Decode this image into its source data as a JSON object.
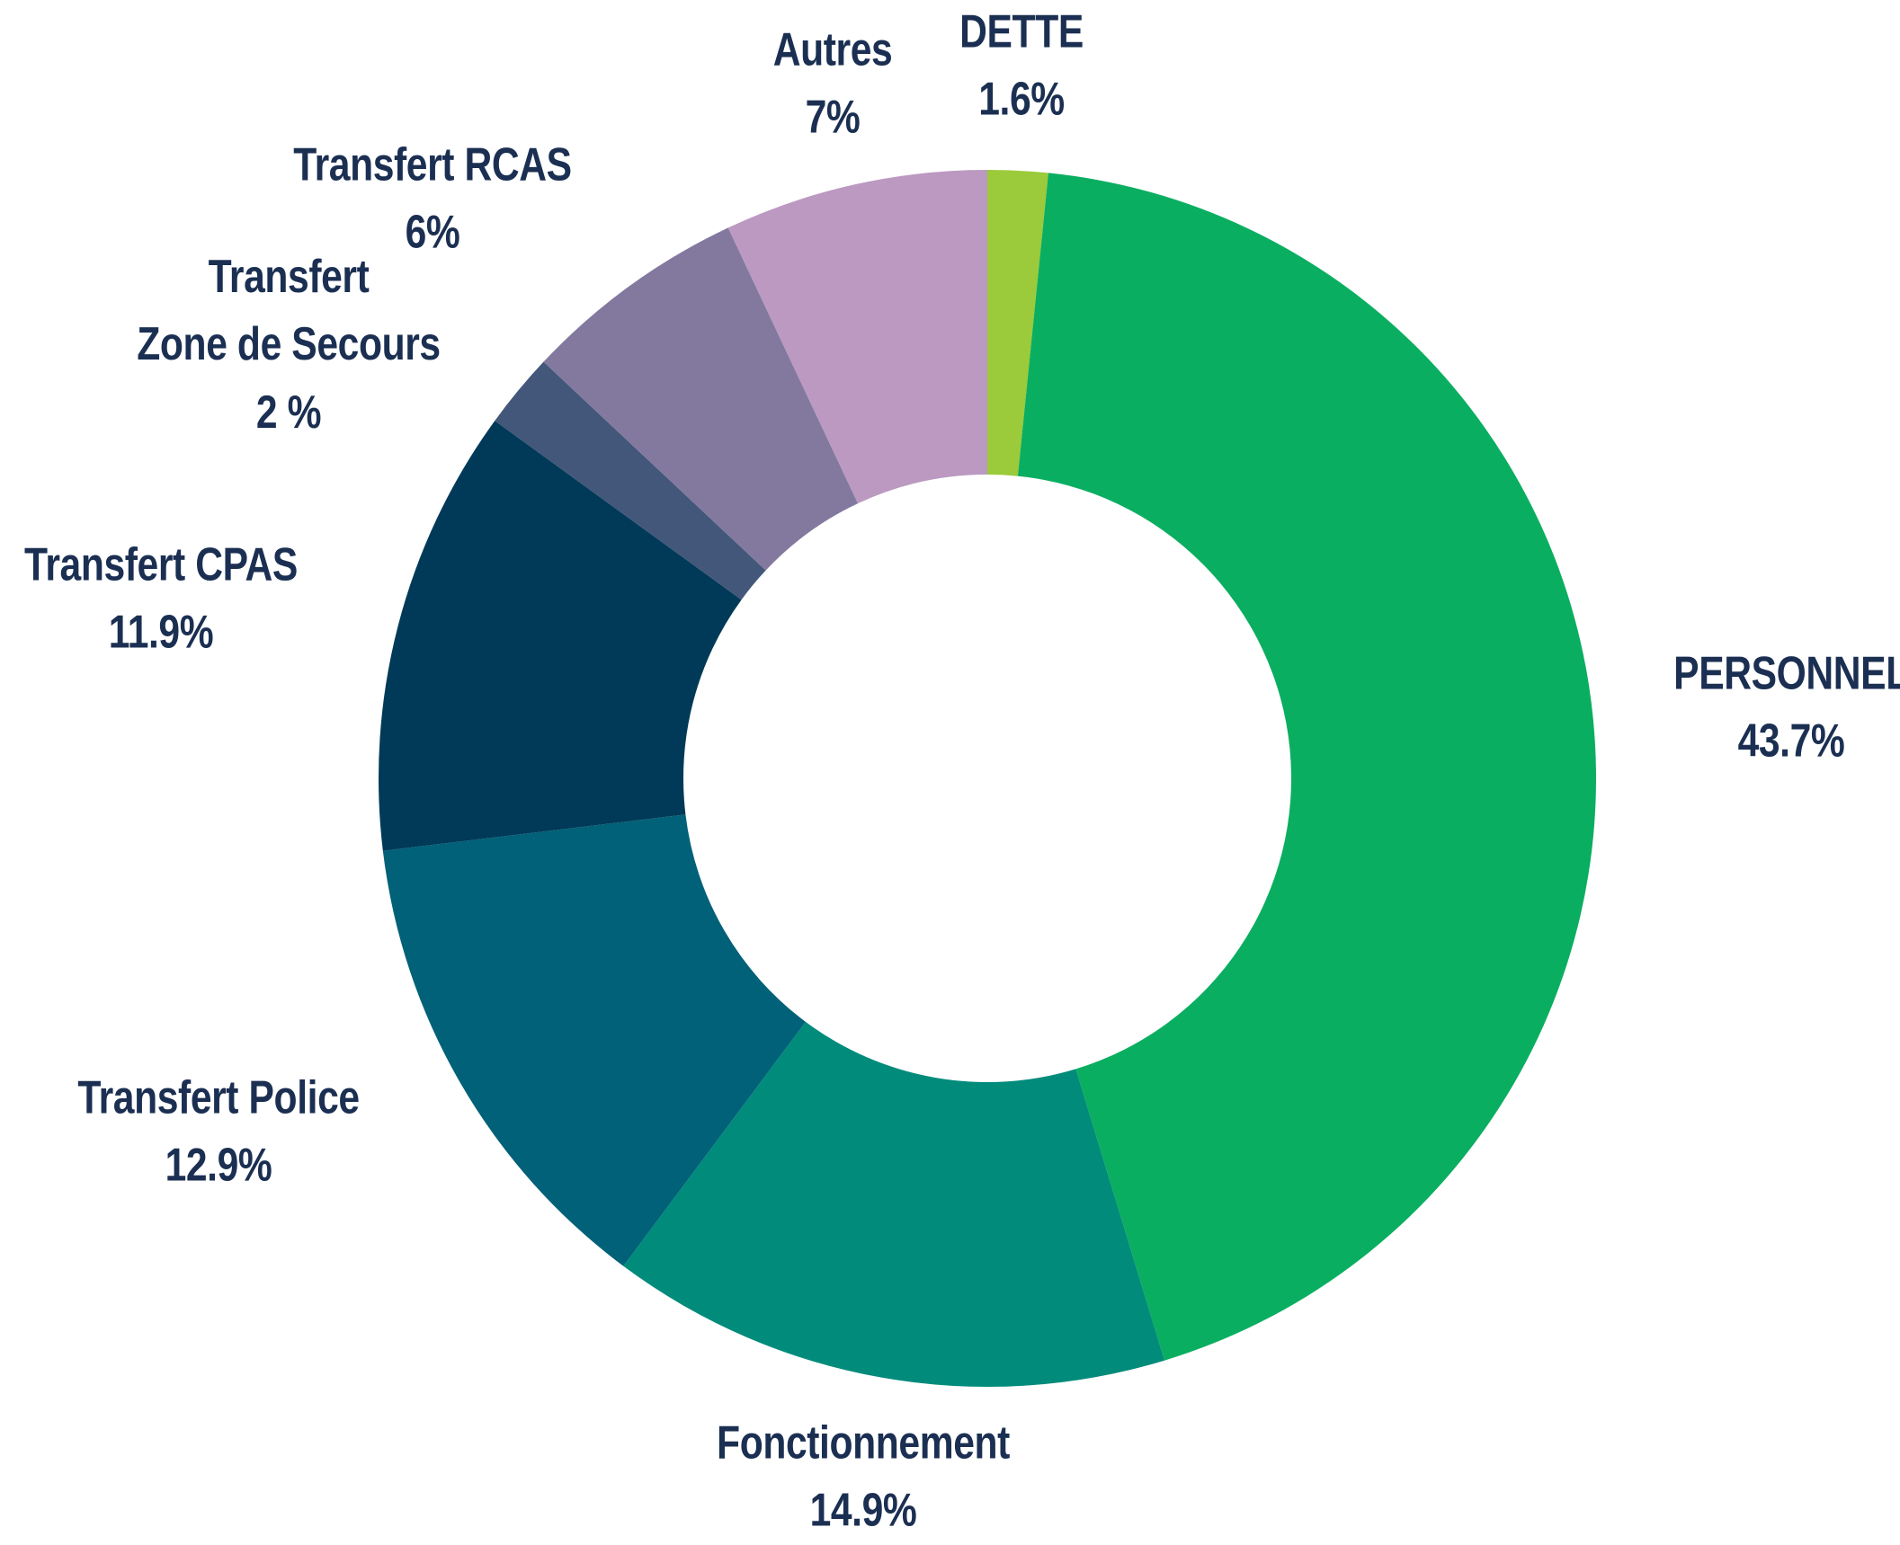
{
  "chart_data": {
    "type": "pie",
    "categories": [
      "DETTE",
      "PERSONNEL",
      "Fonctionnement",
      "Transfert Police",
      "Transfert CPAS",
      "Transfert\nZone de Secours",
      "Transfert RCAS",
      "Autres"
    ],
    "values": [
      1.6,
      43.7,
      14.9,
      12.9,
      11.9,
      2,
      6,
      7
    ],
    "value_labels": [
      "1.6%",
      "43.7%",
      "14.9%",
      "12.9%",
      "11.9%",
      "2 %",
      "6%",
      "7%"
    ],
    "colors": [
      "#9bca3a",
      "#0aae60",
      "#008b7b",
      "#006178",
      "#003a58",
      "#43577a",
      "#83799f",
      "#bb99c1"
    ]
  }
}
